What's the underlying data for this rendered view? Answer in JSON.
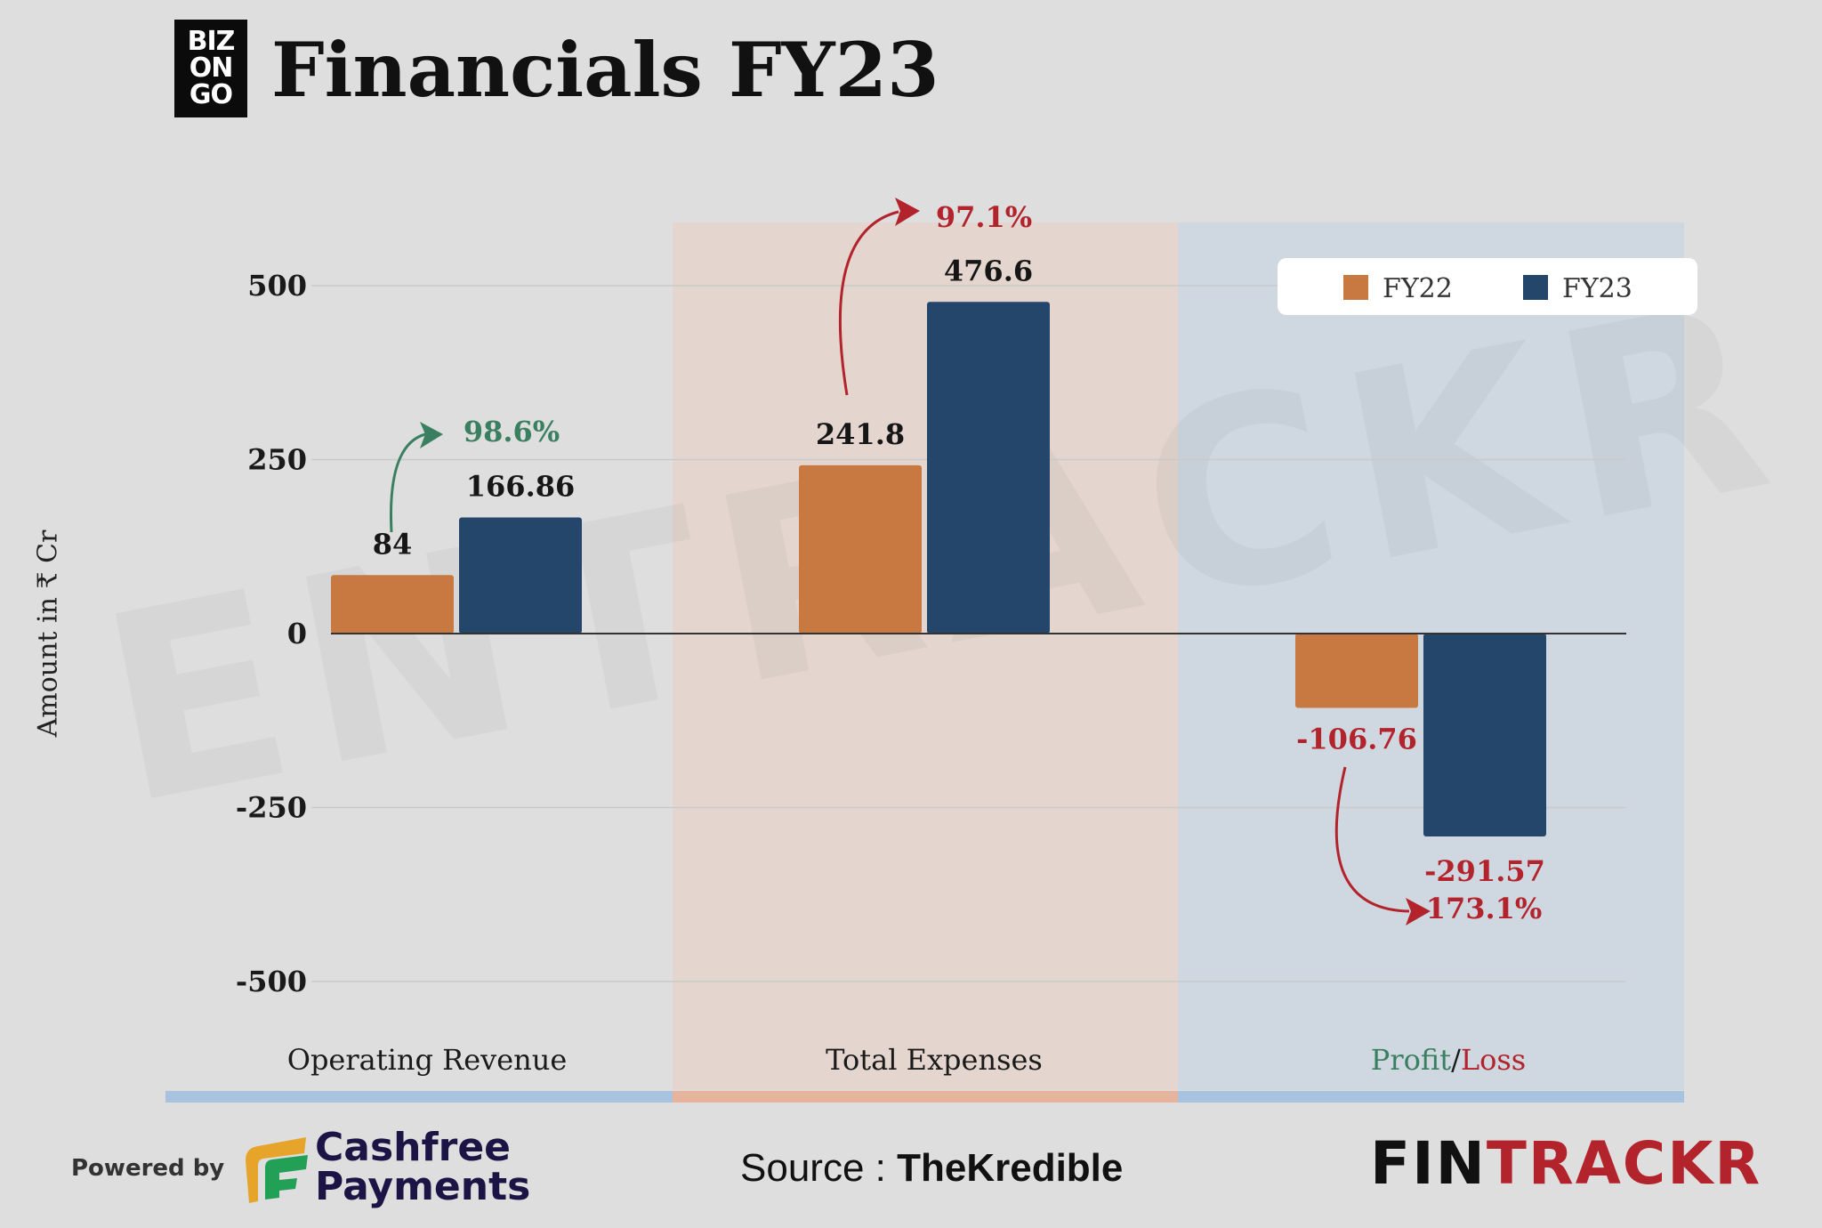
{
  "header": {
    "logo_lines": [
      "BIZ",
      "ON",
      "GO"
    ],
    "title": "Financials FY23"
  },
  "chart_data": {
    "type": "bar",
    "categories": [
      "Operating Revenue",
      "Total Expenses",
      "Profit/Loss"
    ],
    "series": [
      {
        "name": "FY22",
        "color": "#c87941",
        "values": [
          84,
          241.8,
          -106.76
        ]
      },
      {
        "name": "FY23",
        "color": "#24466b",
        "values": [
          166.86,
          476.6,
          -291.57
        ]
      }
    ],
    "value_labels": [
      [
        "84",
        "241.8",
        "-106.76"
      ],
      [
        "166.86",
        "476.6",
        "-291.57"
      ]
    ],
    "changes": [
      {
        "label": "98.6%",
        "color": "#3a8060"
      },
      {
        "label": "97.1%",
        "color": "#b3232c"
      },
      {
        "label": "173.1%",
        "color": "#b3232c"
      }
    ],
    "ylabel": "Amount in ₹ Cr",
    "yticks": [
      500,
      250,
      0,
      -250,
      -500
    ],
    "ytick_labels": [
      "500",
      "250",
      "0",
      "-250",
      "-500"
    ],
    "ylim": [
      -500,
      500
    ],
    "grid": true,
    "legend_position": "top-right",
    "profit_loss_label": {
      "profit": "Profit",
      "sep": "/",
      "loss": "Loss"
    },
    "section_colors": [
      "#a8c3e0",
      "#e6b49c",
      "#a8c3e0"
    ],
    "watermark": "ENTRACKR"
  },
  "footer": {
    "powered_by": "Powered by",
    "partner_line1": "Cashfree",
    "partner_line2": "Payments",
    "source_prefix": "Source : ",
    "source_name": "TheKredible",
    "brand_dark": "FIN",
    "brand_red": "TRACKR"
  },
  "colors": {
    "background": "#dedede",
    "loss_label": "#b3232c",
    "profit_label": "#3a8060"
  }
}
